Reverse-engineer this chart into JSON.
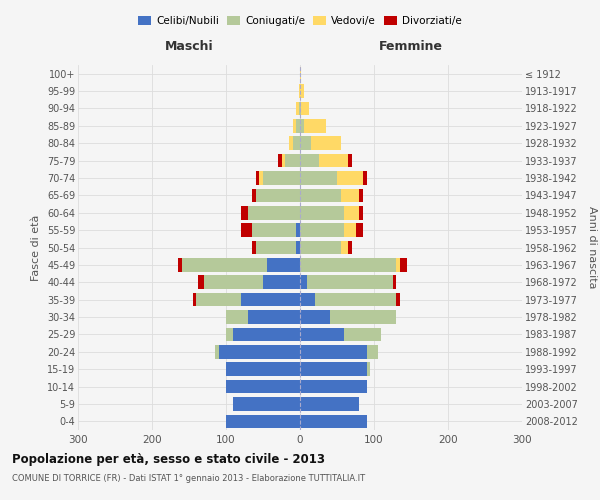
{
  "age_groups": [
    "0-4",
    "5-9",
    "10-14",
    "15-19",
    "20-24",
    "25-29",
    "30-34",
    "35-39",
    "40-44",
    "45-49",
    "50-54",
    "55-59",
    "60-64",
    "65-69",
    "70-74",
    "75-79",
    "80-84",
    "85-89",
    "90-94",
    "95-99",
    "100+"
  ],
  "birth_years": [
    "2008-2012",
    "2003-2007",
    "1998-2002",
    "1993-1997",
    "1988-1992",
    "1983-1987",
    "1978-1982",
    "1973-1977",
    "1968-1972",
    "1963-1967",
    "1958-1962",
    "1953-1957",
    "1948-1952",
    "1943-1947",
    "1938-1942",
    "1933-1937",
    "1928-1932",
    "1923-1927",
    "1918-1922",
    "1913-1917",
    "≤ 1912"
  ],
  "maschi": {
    "celibi": [
      100,
      90,
      100,
      100,
      110,
      90,
      70,
      80,
      50,
      45,
      5,
      5,
      0,
      0,
      0,
      0,
      0,
      0,
      0,
      0,
      0
    ],
    "coniugati": [
      0,
      0,
      0,
      0,
      5,
      10,
      30,
      60,
      80,
      115,
      55,
      60,
      70,
      60,
      50,
      20,
      10,
      5,
      2,
      0,
      0
    ],
    "vedovi": [
      0,
      0,
      0,
      0,
      0,
      0,
      0,
      0,
      0,
      0,
      0,
      0,
      0,
      0,
      5,
      5,
      5,
      5,
      3,
      2,
      0
    ],
    "divorziati": [
      0,
      0,
      0,
      0,
      0,
      0,
      0,
      5,
      8,
      5,
      5,
      15,
      10,
      5,
      5,
      5,
      0,
      0,
      0,
      0,
      0
    ]
  },
  "femmine": {
    "nubili": [
      90,
      80,
      90,
      90,
      90,
      60,
      40,
      20,
      10,
      0,
      0,
      0,
      0,
      0,
      0,
      0,
      0,
      0,
      0,
      0,
      0
    ],
    "coniugate": [
      0,
      0,
      0,
      5,
      15,
      50,
      90,
      110,
      115,
      130,
      55,
      60,
      60,
      55,
      50,
      25,
      15,
      5,
      2,
      0,
      0
    ],
    "vedove": [
      0,
      0,
      0,
      0,
      0,
      0,
      0,
      0,
      0,
      5,
      10,
      15,
      20,
      25,
      35,
      40,
      40,
      30,
      10,
      5,
      2
    ],
    "divorziate": [
      0,
      0,
      0,
      0,
      0,
      0,
      0,
      5,
      5,
      10,
      5,
      10,
      5,
      5,
      5,
      5,
      0,
      0,
      0,
      0,
      0
    ]
  },
  "colors": {
    "celibi": "#4472c4",
    "coniugati": "#b5c99a",
    "vedovi": "#ffd966",
    "divorziati": "#c00000"
  },
  "xlim": 300,
  "title": "Popolazione per età, sesso e stato civile - 2013",
  "subtitle": "COMUNE DI TORRICE (FR) - Dati ISTAT 1° gennaio 2013 - Elaborazione TUTTITALIA.IT",
  "ylabel_left": "Fasce di età",
  "ylabel_right": "Anni di nascita",
  "xlabel_left": "Maschi",
  "xlabel_right": "Femmine",
  "legend_labels": [
    "Celibi/Nubili",
    "Coniugati/e",
    "Vedovi/e",
    "Divorziati/e"
  ],
  "background_color": "#f5f5f5",
  "plot_bg": "#f5f5f5",
  "grid_color": "#dddddd"
}
